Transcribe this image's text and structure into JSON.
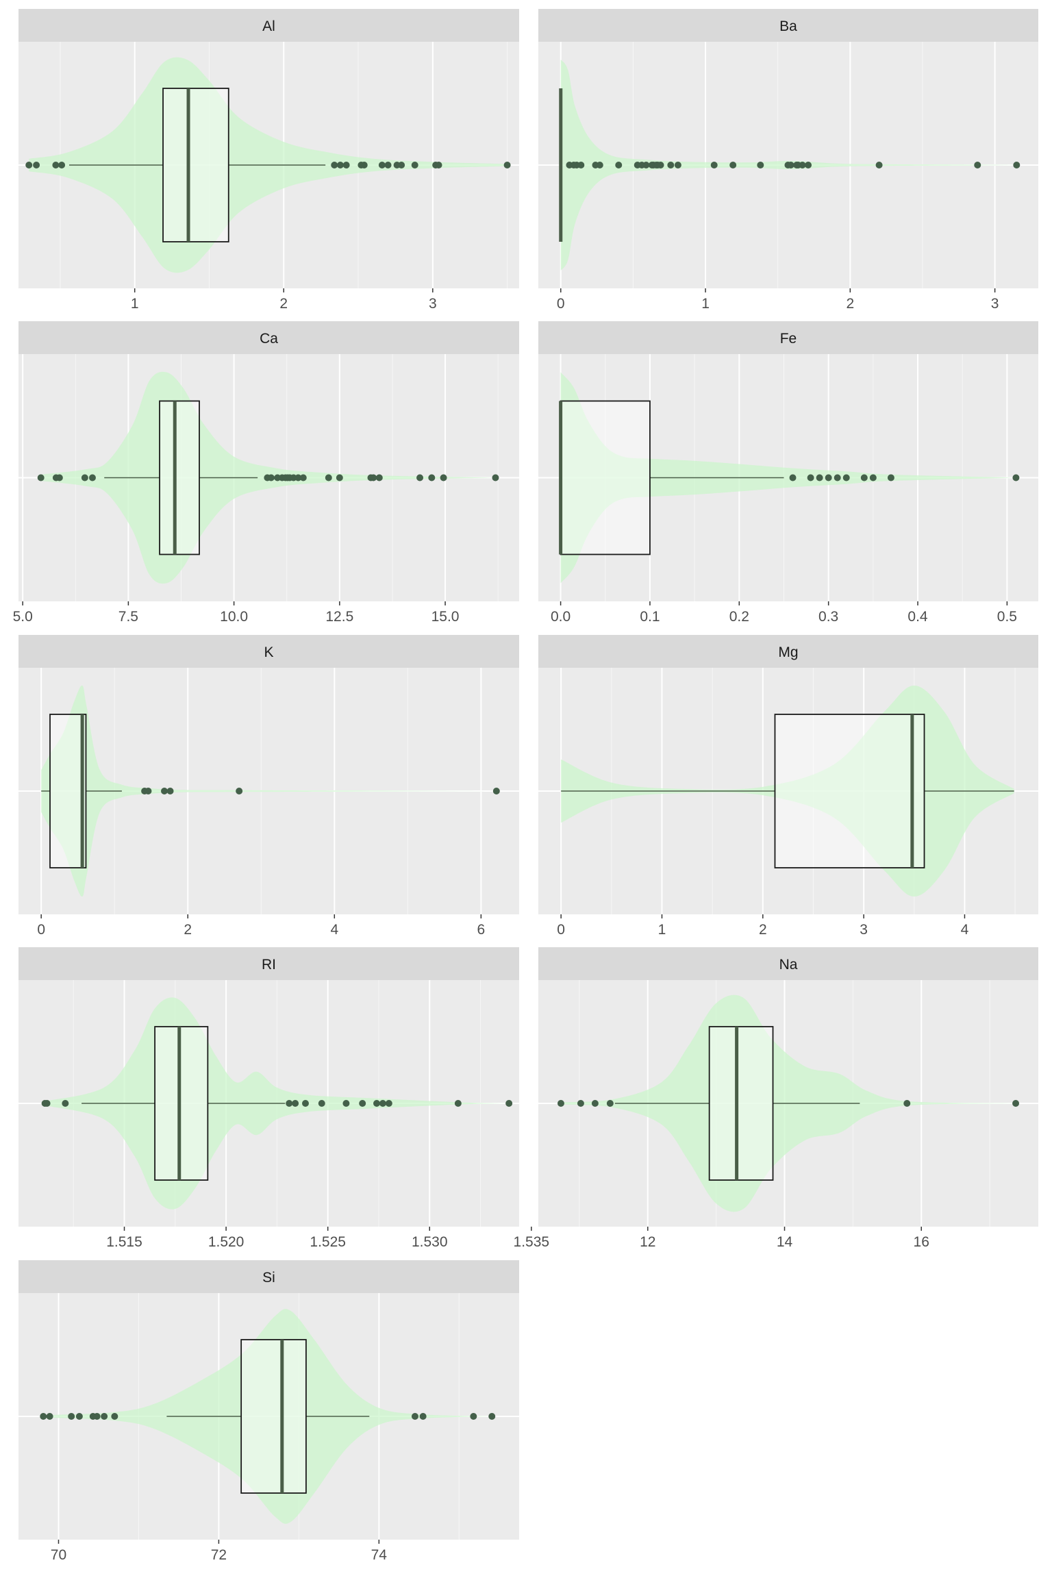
{
  "colors": {
    "panel_bg": "#ebebeb",
    "strip_bg": "#d9d9d9",
    "grid_major": "#ffffff",
    "violin_fill": "#ccf5cc",
    "box_fill": "#ffffff",
    "box_stroke": "#1a1a1a",
    "median": "#4a5e48",
    "point": "#44604a",
    "tick_label": "#4d4d4d"
  },
  "chart_data": [
    {
      "type": "violin+boxplot",
      "facet": "Al",
      "xlim": [
        0.22,
        3.58
      ],
      "ticks": [
        1,
        2,
        3
      ],
      "tick_labels": [
        "1",
        "2",
        "3"
      ],
      "box": {
        "whisker_low": 0.56,
        "q1": 1.19,
        "median": 1.36,
        "q3": 1.63,
        "whisker_high": 2.28
      },
      "outliers": [
        0.29,
        0.34,
        0.47,
        0.51,
        2.34,
        2.38,
        2.42,
        2.52,
        2.54,
        2.66,
        2.7,
        2.76,
        2.79,
        2.88,
        3.02,
        3.04,
        3.5
      ],
      "violin": {
        "x": [
          0.29,
          0.55,
          0.85,
          1.05,
          1.2,
          1.35,
          1.5,
          1.7,
          2.0,
          2.3,
          2.6,
          3.0,
          3.5
        ],
        "density": [
          0.06,
          0.12,
          0.32,
          0.68,
          0.98,
          1.0,
          0.8,
          0.45,
          0.22,
          0.12,
          0.06,
          0.03,
          0.01
        ]
      }
    },
    {
      "type": "violin+boxplot",
      "facet": "Ba",
      "xlim": [
        -0.155,
        3.3
      ],
      "ticks": [
        0,
        1,
        2,
        3
      ],
      "tick_labels": [
        "0",
        "1",
        "2",
        "3"
      ],
      "box": {
        "whisker_low": 0,
        "q1": 0,
        "median": 0,
        "q3": 0,
        "whisker_high": 0
      },
      "outliers": [
        0.06,
        0.09,
        0.11,
        0.14,
        0.24,
        0.27,
        0.4,
        0.53,
        0.56,
        0.59,
        0.63,
        0.64,
        0.66,
        0.67,
        0.69,
        0.76,
        0.81,
        1.06,
        1.19,
        1.38,
        1.57,
        1.59,
        1.63,
        1.64,
        1.67,
        1.71,
        2.2,
        2.88,
        3.15
      ],
      "violin": {
        "x": [
          0,
          0.05,
          0.1,
          0.2,
          0.35,
          0.6,
          0.9,
          1.3,
          1.6,
          1.9,
          2.2,
          2.9,
          3.15
        ],
        "density": [
          1.0,
          0.9,
          0.55,
          0.25,
          0.09,
          0.05,
          0.03,
          0.025,
          0.04,
          0.015,
          0.008,
          0.003,
          0.0
        ]
      }
    },
    {
      "type": "violin+boxplot",
      "facet": "Ca",
      "xlim": [
        4.9,
        16.75
      ],
      "ticks": [
        5.0,
        7.5,
        10.0,
        12.5,
        15.0
      ],
      "tick_labels": [
        "5.0",
        "7.5",
        "10.0",
        "12.5",
        "15.0"
      ],
      "box": {
        "whisker_low": 6.93,
        "q1": 8.24,
        "median": 8.6,
        "q3": 9.18,
        "whisker_high": 10.56
      },
      "outliers": [
        5.43,
        5.79,
        5.87,
        6.47,
        6.65,
        10.79,
        10.88,
        11.03,
        11.14,
        11.22,
        11.27,
        11.32,
        11.41,
        11.52,
        11.64,
        12.24,
        12.5,
        13.24,
        13.3,
        13.44,
        14.4,
        14.68,
        14.96,
        16.19
      ],
      "violin": {
        "x": [
          5.43,
          6.5,
          7.0,
          7.6,
          8.0,
          8.4,
          8.8,
          9.3,
          10.0,
          11.0,
          12.0,
          13.5,
          16.19
        ],
        "density": [
          0.03,
          0.08,
          0.15,
          0.5,
          0.92,
          1.0,
          0.85,
          0.5,
          0.2,
          0.09,
          0.05,
          0.02,
          0.0
        ]
      }
    },
    {
      "type": "violin+boxplot",
      "facet": "Fe",
      "xlim": [
        -0.025,
        0.535
      ],
      "ticks": [
        0.0,
        0.1,
        0.2,
        0.3,
        0.4,
        0.5
      ],
      "tick_labels": [
        "0.0",
        "0.1",
        "0.2",
        "0.3",
        "0.4",
        "0.5"
      ],
      "box": {
        "whisker_low": 0,
        "q1": 0,
        "median": 0,
        "q3": 0.1,
        "whisker_high": 0.25
      },
      "outliers": [
        0.26,
        0.28,
        0.29,
        0.3,
        0.31,
        0.32,
        0.34,
        0.35,
        0.37,
        0.51
      ],
      "violin": {
        "x": [
          0,
          0.015,
          0.03,
          0.05,
          0.07,
          0.1,
          0.15,
          0.2,
          0.26,
          0.32,
          0.37,
          0.51
        ],
        "density": [
          1.0,
          0.85,
          0.55,
          0.3,
          0.2,
          0.18,
          0.16,
          0.13,
          0.09,
          0.06,
          0.03,
          0.0
        ]
      }
    },
    {
      "type": "violin+boxplot",
      "facet": "K",
      "xlim": [
        -0.31,
        6.52
      ],
      "ticks": [
        0,
        2,
        4,
        6
      ],
      "tick_labels": [
        "0",
        "2",
        "4",
        "6"
      ],
      "box": {
        "whisker_low": 0.0,
        "q1": 0.12,
        "median": 0.56,
        "q3": 0.61,
        "whisker_high": 1.1
      },
      "outliers": [
        1.41,
        1.46,
        1.68,
        1.76,
        2.7,
        6.21
      ],
      "violin": {
        "x": [
          0,
          0.12,
          0.3,
          0.45,
          0.56,
          0.62,
          0.8,
          1.1,
          1.5,
          2.0,
          2.7,
          6.21
        ],
        "density": [
          0.2,
          0.35,
          0.55,
          0.85,
          1.0,
          0.8,
          0.2,
          0.06,
          0.025,
          0.01,
          0.008,
          0.0
        ]
      }
    },
    {
      "type": "violin+boxplot",
      "facet": "Mg",
      "xlim": [
        -0.225,
        4.73
      ],
      "ticks": [
        0,
        1,
        2,
        3,
        4
      ],
      "tick_labels": [
        "0",
        "1",
        "2",
        "3",
        "4"
      ],
      "box": {
        "whisker_low": 0,
        "q1": 2.12,
        "median": 3.48,
        "q3": 3.6,
        "whisker_high": 4.49
      },
      "outliers": [],
      "violin": {
        "x": [
          0,
          0.5,
          1.2,
          2.0,
          2.7,
          3.2,
          3.5,
          3.8,
          4.1,
          4.49
        ],
        "density": [
          0.3,
          0.08,
          0.02,
          0.04,
          0.25,
          0.75,
          1.0,
          0.75,
          0.25,
          0.02
        ]
      }
    },
    {
      "type": "violin+boxplot",
      "facet": "RI",
      "xlim": [
        1.5098,
        1.5344
      ],
      "ticks": [
        1.515,
        1.52,
        1.525,
        1.53,
        1.535
      ],
      "tick_labels": [
        "1.515",
        "1.520",
        "1.525",
        "1.530",
        "1.535"
      ],
      "box": {
        "whisker_low": 1.5129,
        "q1": 1.5165,
        "median": 1.5177,
        "q3": 1.5191,
        "whisker_high": 1.5229
      },
      "outliers": [
        1.5111,
        1.5112,
        1.5121,
        1.5231,
        1.5234,
        1.5239,
        1.5247,
        1.5259,
        1.5267,
        1.5274,
        1.5277,
        1.528,
        1.5314,
        1.5339
      ],
      "violin": {
        "x": [
          1.5111,
          1.514,
          1.5155,
          1.5165,
          1.5175,
          1.5185,
          1.5195,
          1.5205,
          1.5215,
          1.5225,
          1.524,
          1.527,
          1.5315,
          1.5339
        ],
        "density": [
          0.02,
          0.15,
          0.5,
          0.9,
          1.0,
          0.8,
          0.45,
          0.2,
          0.3,
          0.15,
          0.08,
          0.05,
          0.01,
          0.0
        ]
      }
    },
    {
      "type": "violin+boxplot",
      "facet": "Na",
      "xlim": [
        10.4,
        17.71
      ],
      "ticks": [
        12,
        14,
        16
      ],
      "tick_labels": [
        "12",
        "14",
        "16"
      ],
      "box": {
        "whisker_low": 11.52,
        "q1": 12.9,
        "median": 13.3,
        "q3": 13.83,
        "whisker_high": 15.1
      },
      "outliers": [
        10.73,
        11.02,
        11.23,
        11.45,
        15.79,
        17.38
      ],
      "violin": {
        "x": [
          10.73,
          11.5,
          12.2,
          12.6,
          13.0,
          13.4,
          13.8,
          14.3,
          14.8,
          15.2,
          15.8,
          17.38
        ],
        "density": [
          0.01,
          0.04,
          0.2,
          0.55,
          0.95,
          1.0,
          0.62,
          0.35,
          0.28,
          0.12,
          0.02,
          0.0
        ]
      }
    },
    {
      "type": "violin+boxplot",
      "facet": "Si",
      "xlim": [
        69.5,
        75.75
      ],
      "ticks": [
        70,
        72,
        74
      ],
      "tick_labels": [
        "70",
        "72",
        "74"
      ],
      "box": {
        "whisker_low": 71.35,
        "q1": 72.28,
        "median": 72.79,
        "q3": 73.09,
        "whisker_high": 73.88
      },
      "outliers": [
        69.81,
        69.89,
        70.16,
        70.26,
        70.43,
        70.48,
        70.57,
        70.7,
        74.45,
        74.55,
        75.18,
        75.41
      ],
      "violin": {
        "x": [
          69.81,
          70.7,
          71.2,
          71.8,
          72.3,
          72.7,
          72.9,
          73.2,
          73.6,
          74.0,
          74.5,
          75.41
        ],
        "density": [
          0.01,
          0.04,
          0.12,
          0.35,
          0.6,
          0.95,
          1.0,
          0.72,
          0.3,
          0.08,
          0.02,
          0.0
        ]
      }
    }
  ]
}
